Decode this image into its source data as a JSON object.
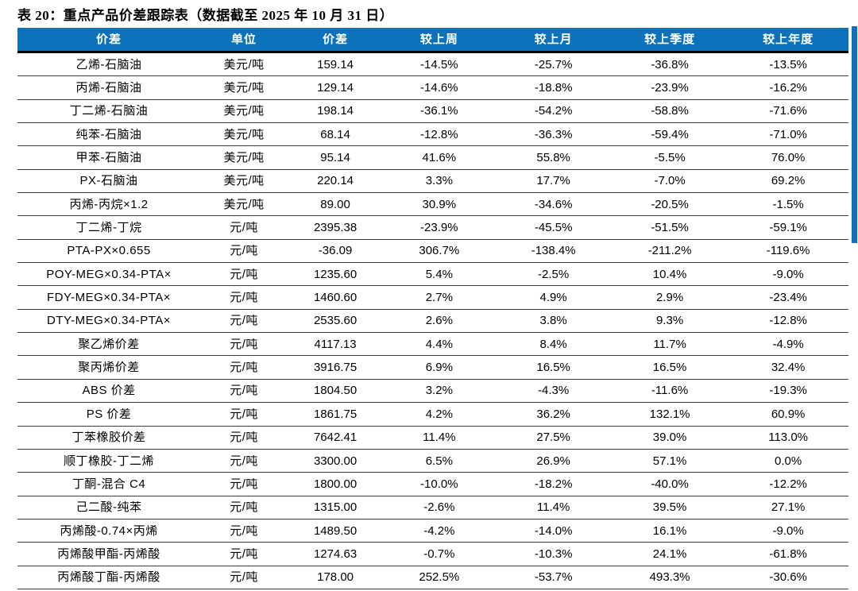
{
  "title": "表 20：重点产品价差跟踪表（数据截至 2025 年 10 月 31 日）",
  "colors": {
    "header_bg": "#0C72BB",
    "header_text": "#FFFFFF",
    "accent_bar": "#0C72BB",
    "header_underline": "#000000",
    "row_line": "#3C3C3C",
    "body_text": "#000000"
  },
  "table": {
    "headers": [
      "价差",
      "单位",
      "价差",
      "较上周",
      "较上月",
      "较上季度",
      "较上年度"
    ],
    "rows": [
      [
        "乙烯-石脑油",
        "美元/吨",
        "159.14",
        "-14.5%",
        "-25.7%",
        "-36.8%",
        "-13.5%"
      ],
      [
        "丙烯-石脑油",
        "美元/吨",
        "129.14",
        "-14.6%",
        "-18.8%",
        "-23.9%",
        "-16.2%"
      ],
      [
        "丁二烯-石脑油",
        "美元/吨",
        "198.14",
        "-36.1%",
        "-54.2%",
        "-58.8%",
        "-71.6%"
      ],
      [
        "纯苯-石脑油",
        "美元/吨",
        "68.14",
        "-12.8%",
        "-36.3%",
        "-59.4%",
        "-71.0%"
      ],
      [
        "甲苯-石脑油",
        "美元/吨",
        "95.14",
        "41.6%",
        "55.8%",
        "-5.5%",
        "76.0%"
      ],
      [
        "PX-石脑油",
        "美元/吨",
        "220.14",
        "3.3%",
        "17.7%",
        "-7.0%",
        "69.2%"
      ],
      [
        "丙烯-丙烷×1.2",
        "美元/吨",
        "89.00",
        "30.9%",
        "-34.6%",
        "-20.5%",
        "-1.5%"
      ],
      [
        "丁二烯-丁烷",
        "元/吨",
        "2395.38",
        "-23.9%",
        "-45.5%",
        "-51.5%",
        "-59.1%"
      ],
      [
        "PTA-PX×0.655",
        "元/吨",
        "-36.09",
        "306.7%",
        "-138.4%",
        "-211.2%",
        "-119.6%"
      ],
      [
        "POY-MEG×0.34-PTA×",
        "元/吨",
        "1235.60",
        "5.4%",
        "-2.5%",
        "10.4%",
        "-9.0%"
      ],
      [
        "FDY-MEG×0.34-PTA×",
        "元/吨",
        "1460.60",
        "2.7%",
        "4.9%",
        "2.9%",
        "-23.4%"
      ],
      [
        "DTY-MEG×0.34-PTA×",
        "元/吨",
        "2535.60",
        "2.6%",
        "3.8%",
        "9.3%",
        "-12.8%"
      ],
      [
        "聚乙烯价差",
        "元/吨",
        "4117.13",
        "4.4%",
        "8.4%",
        "11.7%",
        "-4.9%"
      ],
      [
        "聚丙烯价差",
        "元/吨",
        "3916.75",
        "6.9%",
        "16.5%",
        "16.5%",
        "32.4%"
      ],
      [
        "ABS 价差",
        "元/吨",
        "1804.50",
        "3.2%",
        "-4.3%",
        "-11.6%",
        "-19.3%"
      ],
      [
        "PS 价差",
        "元/吨",
        "1861.75",
        "4.2%",
        "36.2%",
        "132.1%",
        "60.9%"
      ],
      [
        "丁苯橡胶价差",
        "元/吨",
        "7642.41",
        "11.4%",
        "27.5%",
        "39.0%",
        "113.0%"
      ],
      [
        "顺丁橡胶-丁二烯",
        "元/吨",
        "3300.00",
        "6.5%",
        "26.9%",
        "57.1%",
        "0.0%"
      ],
      [
        "丁酮-混合 C4",
        "元/吨",
        "1800.00",
        "-10.0%",
        "-18.2%",
        "-40.0%",
        "-12.2%"
      ],
      [
        "己二酸-纯苯",
        "元/吨",
        "1315.00",
        "-2.6%",
        "11.4%",
        "39.5%",
        "27.1%"
      ],
      [
        "丙烯酸-0.74×丙烯",
        "元/吨",
        "1489.50",
        "-4.2%",
        "-14.0%",
        "16.1%",
        "-9.0%"
      ],
      [
        "丙烯酸甲酯-丙烯酸",
        "元/吨",
        "1274.63",
        "-0.7%",
        "-10.3%",
        "24.1%",
        "-61.8%"
      ],
      [
        "丙烯酸丁酯-丙烯酸",
        "元/吨",
        "178.00",
        "252.5%",
        "-53.7%",
        "493.3%",
        "-30.6%"
      ]
    ]
  }
}
